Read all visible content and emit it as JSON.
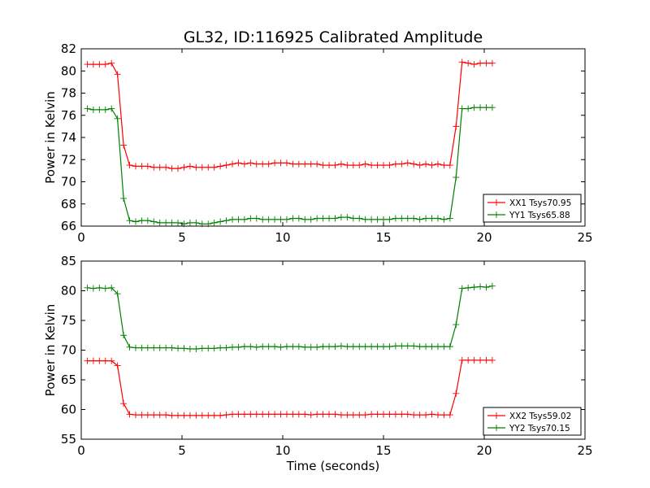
{
  "figure": {
    "title": "GL32, ID:116925 Calibrated Amplitude",
    "xlabel": "Time (seconds)"
  },
  "colors": {
    "red": "#ff0000",
    "green": "#008000"
  },
  "chart_data": [
    {
      "type": "line",
      "title": "GL32, ID:116925 Calibrated Amplitude",
      "xlabel": "",
      "ylabel": "Power in Kelvin",
      "xlim": [
        0,
        25
      ],
      "ylim": [
        66,
        82
      ],
      "xticks": [
        0,
        5,
        10,
        15,
        20,
        25
      ],
      "yticks": [
        66,
        68,
        70,
        72,
        74,
        76,
        78,
        80,
        82
      ],
      "grid": false,
      "legend_position": "lower-right",
      "x": [
        0.3,
        0.6,
        0.9,
        1.2,
        1.5,
        1.8,
        2.1,
        2.4,
        2.7,
        3.0,
        3.3,
        3.6,
        3.9,
        4.2,
        4.5,
        4.8,
        5.1,
        5.4,
        5.7,
        6.0,
        6.3,
        6.6,
        6.9,
        7.2,
        7.5,
        7.8,
        8.1,
        8.4,
        8.7,
        9.0,
        9.3,
        9.6,
        9.9,
        10.2,
        10.5,
        10.8,
        11.1,
        11.4,
        11.7,
        12.0,
        12.3,
        12.6,
        12.9,
        13.2,
        13.5,
        13.8,
        14.1,
        14.4,
        14.7,
        15.0,
        15.3,
        15.6,
        15.9,
        16.2,
        16.5,
        16.8,
        17.1,
        17.4,
        17.7,
        18.0,
        18.3,
        18.6,
        18.9,
        19.2,
        19.5,
        19.8,
        20.1,
        20.4
      ],
      "series": [
        {
          "name": "XX1 Tsys70.95",
          "color": "red",
          "values": [
            80.6,
            80.6,
            80.6,
            80.6,
            80.7,
            79.7,
            73.3,
            71.5,
            71.4,
            71.4,
            71.4,
            71.3,
            71.3,
            71.3,
            71.2,
            71.2,
            71.3,
            71.4,
            71.3,
            71.3,
            71.3,
            71.3,
            71.4,
            71.5,
            71.6,
            71.7,
            71.6,
            71.7,
            71.6,
            71.6,
            71.6,
            71.7,
            71.7,
            71.7,
            71.6,
            71.6,
            71.6,
            71.6,
            71.6,
            71.5,
            71.5,
            71.5,
            71.6,
            71.5,
            71.5,
            71.5,
            71.6,
            71.5,
            71.5,
            71.5,
            71.5,
            71.6,
            71.6,
            71.7,
            71.6,
            71.5,
            71.6,
            71.5,
            71.6,
            71.5,
            71.5,
            75.0,
            80.8,
            80.7,
            80.6,
            80.7,
            80.7,
            80.7
          ]
        },
        {
          "name": "YY1 Tsys65.88",
          "color": "green",
          "values": [
            76.6,
            76.5,
            76.5,
            76.5,
            76.6,
            75.7,
            68.5,
            66.5,
            66.4,
            66.5,
            66.5,
            66.4,
            66.3,
            66.3,
            66.3,
            66.3,
            66.2,
            66.3,
            66.3,
            66.2,
            66.2,
            66.3,
            66.4,
            66.5,
            66.6,
            66.6,
            66.6,
            66.7,
            66.7,
            66.6,
            66.6,
            66.6,
            66.6,
            66.6,
            66.7,
            66.7,
            66.6,
            66.6,
            66.7,
            66.7,
            66.7,
            66.7,
            66.8,
            66.8,
            66.7,
            66.7,
            66.6,
            66.6,
            66.6,
            66.6,
            66.6,
            66.7,
            66.7,
            66.7,
            66.7,
            66.6,
            66.7,
            66.7,
            66.7,
            66.6,
            66.7,
            70.4,
            76.6,
            76.6,
            76.7,
            76.7,
            76.7,
            76.7
          ]
        }
      ]
    },
    {
      "type": "line",
      "xlabel": "Time (seconds)",
      "ylabel": "Power in Kelvin",
      "xlim": [
        0,
        25
      ],
      "ylim": [
        55,
        85
      ],
      "xticks": [
        0,
        5,
        10,
        15,
        20,
        25
      ],
      "yticks": [
        55,
        60,
        65,
        70,
        75,
        80,
        85
      ],
      "grid": false,
      "legend_position": "lower-right",
      "x": [
        0.3,
        0.6,
        0.9,
        1.2,
        1.5,
        1.8,
        2.1,
        2.4,
        2.7,
        3.0,
        3.3,
        3.6,
        3.9,
        4.2,
        4.5,
        4.8,
        5.1,
        5.4,
        5.7,
        6.0,
        6.3,
        6.6,
        6.9,
        7.2,
        7.5,
        7.8,
        8.1,
        8.4,
        8.7,
        9.0,
        9.3,
        9.6,
        9.9,
        10.2,
        10.5,
        10.8,
        11.1,
        11.4,
        11.7,
        12.0,
        12.3,
        12.6,
        12.9,
        13.2,
        13.5,
        13.8,
        14.1,
        14.4,
        14.7,
        15.0,
        15.3,
        15.6,
        15.9,
        16.2,
        16.5,
        16.8,
        17.1,
        17.4,
        17.7,
        18.0,
        18.3,
        18.6,
        18.9,
        19.2,
        19.5,
        19.8,
        20.1,
        20.4
      ],
      "series": [
        {
          "name": "XX2 Tsys59.02",
          "color": "red",
          "values": [
            68.2,
            68.2,
            68.2,
            68.2,
            68.2,
            67.4,
            61.0,
            59.2,
            59.1,
            59.1,
            59.1,
            59.1,
            59.1,
            59.1,
            59.0,
            59.0,
            59.0,
            59.0,
            59.0,
            59.0,
            59.0,
            59.0,
            59.0,
            59.1,
            59.2,
            59.2,
            59.2,
            59.2,
            59.2,
            59.2,
            59.2,
            59.2,
            59.2,
            59.2,
            59.2,
            59.2,
            59.2,
            59.1,
            59.2,
            59.2,
            59.2,
            59.2,
            59.1,
            59.1,
            59.1,
            59.1,
            59.1,
            59.2,
            59.2,
            59.2,
            59.2,
            59.2,
            59.2,
            59.2,
            59.1,
            59.1,
            59.1,
            59.2,
            59.1,
            59.1,
            59.1,
            62.7,
            68.3,
            68.3,
            68.3,
            68.3,
            68.3,
            68.3
          ]
        },
        {
          "name": "YY2 Tsys70.15",
          "color": "green",
          "values": [
            80.5,
            80.4,
            80.5,
            80.4,
            80.5,
            79.5,
            72.5,
            70.5,
            70.4,
            70.4,
            70.4,
            70.4,
            70.4,
            70.4,
            70.4,
            70.3,
            70.3,
            70.2,
            70.2,
            70.3,
            70.3,
            70.3,
            70.4,
            70.4,
            70.5,
            70.5,
            70.6,
            70.6,
            70.5,
            70.6,
            70.6,
            70.6,
            70.5,
            70.6,
            70.6,
            70.6,
            70.5,
            70.5,
            70.5,
            70.6,
            70.6,
            70.6,
            70.7,
            70.6,
            70.6,
            70.6,
            70.6,
            70.6,
            70.6,
            70.6,
            70.6,
            70.7,
            70.7,
            70.7,
            70.7,
            70.6,
            70.6,
            70.6,
            70.6,
            70.6,
            70.6,
            74.3,
            80.4,
            80.5,
            80.6,
            80.7,
            80.6,
            80.8
          ]
        }
      ]
    }
  ]
}
